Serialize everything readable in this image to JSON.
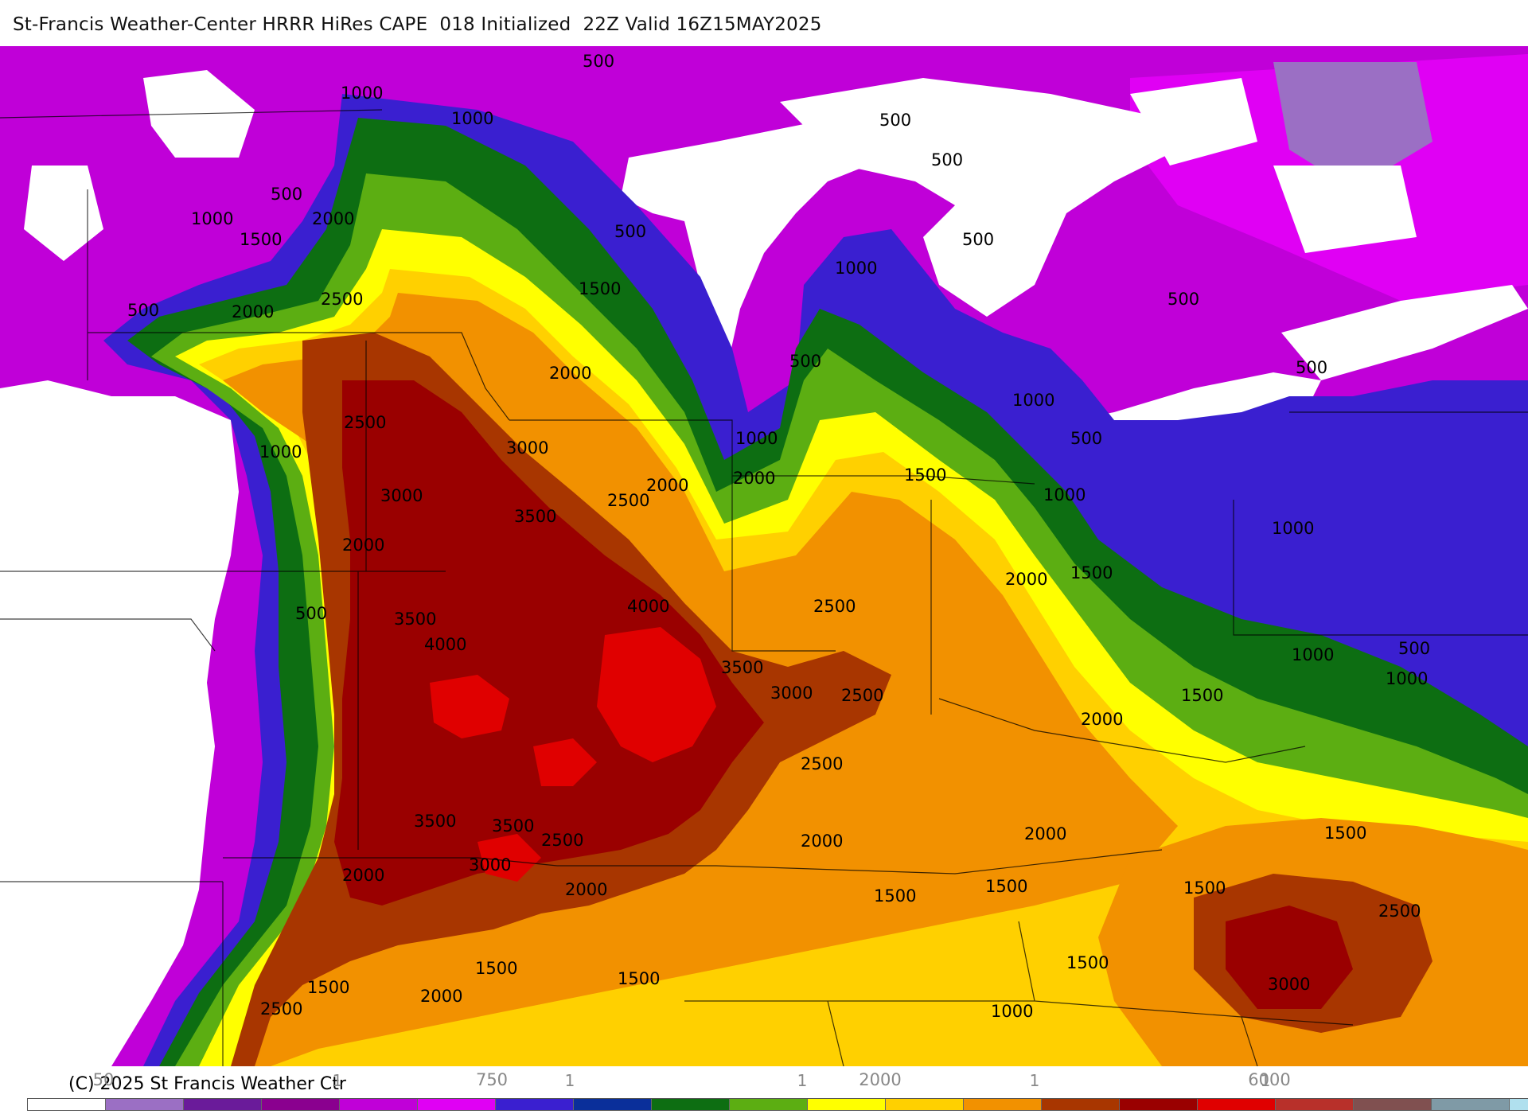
{
  "title": "St-Francis Weather-Center HRRR HiRes CAPE  018 Initialized  22Z Valid 16Z15MAY2025",
  "copyright": "(C) 2025 St Francis Weather Ctr",
  "colorbar": {
    "ticks": [
      "50",
      "750",
      "2000",
      "6000"
    ],
    "minor_ticks": [
      "1",
      "1",
      "1",
      "1",
      "1"
    ],
    "colors": [
      "#ffffff",
      "#9b6fc4",
      "#6a1b9a",
      "#8a008f",
      "#c000d8",
      "#e000f4",
      "#3a1fd0",
      "#0a2f9a",
      "#0d6e12",
      "#5cae12",
      "#ffff00",
      "#ffd000",
      "#f29100",
      "#a83600",
      "#9a0000",
      "#e00000",
      "#b8302a",
      "#805050",
      "#7f9aa6",
      "#b0e0ee"
    ]
  },
  "contour_labels": [
    {
      "text": "500"
    },
    {
      "text": "1000"
    },
    {
      "text": "1000"
    },
    {
      "text": "500"
    },
    {
      "text": "500"
    },
    {
      "text": "500"
    },
    {
      "text": "500"
    },
    {
      "text": "1000"
    },
    {
      "text": "500"
    },
    {
      "text": "1500"
    },
    {
      "text": "1000"
    },
    {
      "text": "2000"
    },
    {
      "text": "2500"
    },
    {
      "text": "2000"
    },
    {
      "text": "500"
    },
    {
      "text": "1500"
    },
    {
      "text": "2000"
    },
    {
      "text": "500"
    },
    {
      "text": "1000"
    },
    {
      "text": "1000"
    },
    {
      "text": "500"
    },
    {
      "text": "500"
    },
    {
      "text": "500"
    },
    {
      "text": "2500"
    },
    {
      "text": "3000"
    },
    {
      "text": "1000"
    },
    {
      "text": "2000"
    },
    {
      "text": "1500"
    },
    {
      "text": "2000"
    },
    {
      "text": "1000"
    },
    {
      "text": "3000"
    },
    {
      "text": "3500"
    },
    {
      "text": "2500"
    },
    {
      "text": "2000"
    },
    {
      "text": "1500"
    },
    {
      "text": "2000"
    },
    {
      "text": "1000"
    },
    {
      "text": "500"
    },
    {
      "text": "4000"
    },
    {
      "text": "2500"
    },
    {
      "text": "3500"
    },
    {
      "text": "4000"
    },
    {
      "text": "3500"
    },
    {
      "text": "3000"
    },
    {
      "text": "2500"
    },
    {
      "text": "2000"
    },
    {
      "text": "1500"
    },
    {
      "text": "1000"
    },
    {
      "text": "1000"
    },
    {
      "text": "500"
    },
    {
      "text": "2500"
    },
    {
      "text": "3500"
    },
    {
      "text": "3500"
    },
    {
      "text": "2500"
    },
    {
      "text": "2000"
    },
    {
      "text": "2000"
    },
    {
      "text": "1500"
    },
    {
      "text": "3000"
    },
    {
      "text": "2000"
    },
    {
      "text": "2000"
    },
    {
      "text": "1500"
    },
    {
      "text": "1500"
    },
    {
      "text": "1500"
    },
    {
      "text": "2500"
    },
    {
      "text": "1500"
    },
    {
      "text": "1500"
    },
    {
      "text": "1500"
    },
    {
      "text": "1000"
    },
    {
      "text": "3000"
    },
    {
      "text": "2500"
    },
    {
      "text": "1500"
    },
    {
      "text": "2000"
    }
  ]
}
